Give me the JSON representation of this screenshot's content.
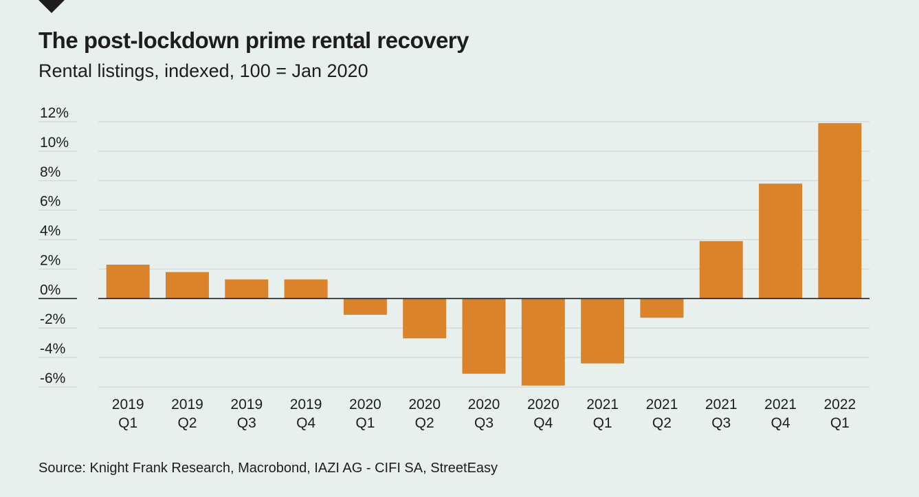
{
  "header": {
    "title": "The post-lockdown prime rental recovery",
    "subtitle": "Rental listings, indexed, 100 = Jan 2020",
    "logo_icon": "triangle-down-icon"
  },
  "footer": {
    "source": "Source: Knight Frank Research, Macrobond, IAZI AG - CIFI SA, StreetEasy"
  },
  "colors": {
    "background": "#e8f0ee",
    "bar": "#db832a",
    "gridline": "#cfd8d6",
    "zero_line": "#1d1d1b",
    "text": "#1d1d1b"
  },
  "chart_data": {
    "type": "bar",
    "title": "The post-lockdown prime rental recovery",
    "subtitle": "Rental listings, indexed, 100 = Jan 2020",
    "xlabel": "",
    "ylabel": "",
    "ylim": [
      -6,
      12
    ],
    "yticks": [
      12,
      10,
      8,
      6,
      4,
      2,
      0,
      -2,
      -4,
      -6
    ],
    "ytick_labels": [
      "12%",
      "10%",
      "8%",
      "6%",
      "4%",
      "2%",
      "0%",
      "-2%",
      "-4%",
      "-6%"
    ],
    "grid": true,
    "legend": "none",
    "categories": [
      [
        "2019",
        "Q1"
      ],
      [
        "2019",
        "Q2"
      ],
      [
        "2019",
        "Q3"
      ],
      [
        "2019",
        "Q4"
      ],
      [
        "2020",
        "Q1"
      ],
      [
        "2020",
        "Q2"
      ],
      [
        "2020",
        "Q3"
      ],
      [
        "2020",
        "Q4"
      ],
      [
        "2021",
        "Q1"
      ],
      [
        "2021",
        "Q2"
      ],
      [
        "2021",
        "Q3"
      ],
      [
        "2021",
        "Q4"
      ],
      [
        "2022",
        "Q1"
      ]
    ],
    "values": [
      2.3,
      1.8,
      1.3,
      1.3,
      -1.1,
      -2.7,
      -5.1,
      -5.9,
      -4.4,
      -1.3,
      3.9,
      7.8,
      11.9
    ],
    "unit": "%",
    "source": "Source: Knight Frank Research, Macrobond, IAZI AG - CIFI SA, StreetEasy"
  }
}
